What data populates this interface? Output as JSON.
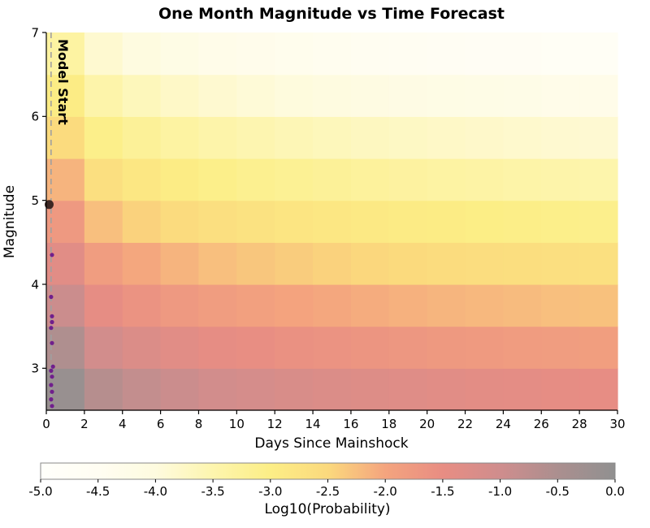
{
  "chart_data": {
    "type": "heatmap",
    "title": "One Month Magnitude vs Time Forecast",
    "xlabel": "Days Since Mainshock",
    "ylabel": "Magnitude",
    "colorbar_label": "Log10(Probability)",
    "xlim": [
      0,
      30
    ],
    "ylim": [
      2.5,
      7
    ],
    "x_ticks": [
      0,
      2,
      4,
      6,
      8,
      10,
      12,
      14,
      16,
      18,
      20,
      22,
      24,
      26,
      28,
      30
    ],
    "y_ticks": [
      3,
      4,
      5,
      6,
      7
    ],
    "day_edges": [
      0,
      2,
      4,
      6,
      8,
      10,
      12,
      14,
      16,
      18,
      20,
      22,
      24,
      26,
      28,
      30
    ],
    "mag_edges": [
      2.5,
      3.0,
      3.5,
      4.0,
      4.5,
      5.0,
      5.5,
      6.0,
      6.5,
      7.0
    ],
    "values": [
      [
        -0.15,
        -0.65,
        -0.83,
        -0.95,
        -1.05,
        -1.12,
        -1.18,
        -1.23,
        -1.28,
        -1.32,
        -1.36,
        -1.39,
        -1.42,
        -1.45,
        -1.47
      ],
      [
        -0.55,
        -1.05,
        -1.23,
        -1.35,
        -1.45,
        -1.52,
        -1.58,
        -1.63,
        -1.68,
        -1.72,
        -1.76,
        -1.79,
        -1.82,
        -1.85,
        -1.87
      ],
      [
        -0.95,
        -1.45,
        -1.63,
        -1.75,
        -1.85,
        -1.92,
        -1.98,
        -2.03,
        -2.08,
        -2.12,
        -2.16,
        -2.19,
        -2.22,
        -2.25,
        -2.27
      ],
      [
        -1.35,
        -1.85,
        -2.03,
        -2.15,
        -2.25,
        -2.32,
        -2.38,
        -2.43,
        -2.48,
        -2.52,
        -2.56,
        -2.59,
        -2.62,
        -2.65,
        -2.67
      ],
      [
        -1.75,
        -2.25,
        -2.43,
        -2.55,
        -2.65,
        -2.72,
        -2.78,
        -2.83,
        -2.88,
        -2.92,
        -2.96,
        -2.99,
        -3.02,
        -3.05,
        -3.07
      ],
      [
        -2.15,
        -2.65,
        -2.83,
        -2.95,
        -3.05,
        -3.12,
        -3.18,
        -3.23,
        -3.28,
        -3.32,
        -3.36,
        -3.39,
        -3.42,
        -3.45,
        -3.47
      ],
      [
        -2.55,
        -3.05,
        -3.23,
        -3.35,
        -3.45,
        -3.52,
        -3.58,
        -3.63,
        -3.68,
        -3.72,
        -3.76,
        -3.79,
        -3.82,
        -3.85,
        -3.87
      ],
      [
        -2.95,
        -3.45,
        -3.63,
        -3.75,
        -3.85,
        -3.92,
        -3.98,
        -4.03,
        -4.08,
        -4.12,
        -4.16,
        -4.19,
        -4.22,
        -4.25,
        -4.27
      ],
      [
        -3.35,
        -3.85,
        -4.03,
        -4.15,
        -4.25,
        -4.32,
        -4.38,
        -4.43,
        -4.48,
        -4.52,
        -4.56,
        -4.59,
        -4.62,
        -4.65,
        -4.67
      ]
    ],
    "colormap_stops": [
      [
        -5.0,
        "#fffffb"
      ],
      [
        -4.5,
        "#fffdf2"
      ],
      [
        -4.0,
        "#fefbdf"
      ],
      [
        -3.5,
        "#fdf5ae"
      ],
      [
        -3.0,
        "#fcee86"
      ],
      [
        -2.5,
        "#fbd97d"
      ],
      [
        -2.0,
        "#f4a47e"
      ],
      [
        -1.5,
        "#e88d83"
      ],
      [
        -1.0,
        "#cf8d8d"
      ],
      [
        -0.5,
        "#ab8f8f"
      ],
      [
        0.0,
        "#909090"
      ]
    ],
    "colorbar_range": [
      -5.0,
      0.0
    ],
    "colorbar_ticks": [
      -5.0,
      -4.5,
      -4.0,
      -3.5,
      -3.0,
      -2.5,
      -2.0,
      -1.5,
      -1.0,
      -0.5,
      0.0
    ],
    "model_start": {
      "label": "Model Start",
      "day": 0.25,
      "line_color": "#a0a0a0"
    },
    "mainshock": {
      "day": 0.15,
      "mag": 4.95,
      "color": "#3e2723"
    },
    "observed_events": [
      {
        "day": 0.3,
        "mag": 2.55
      },
      {
        "day": 0.25,
        "mag": 2.63
      },
      {
        "day": 0.3,
        "mag": 2.72
      },
      {
        "day": 0.25,
        "mag": 2.8
      },
      {
        "day": 0.3,
        "mag": 2.9
      },
      {
        "day": 0.25,
        "mag": 2.97
      },
      {
        "day": 0.35,
        "mag": 3.02
      },
      {
        "day": 0.3,
        "mag": 3.3
      },
      {
        "day": 0.25,
        "mag": 3.48
      },
      {
        "day": 0.3,
        "mag": 3.55
      },
      {
        "day": 0.3,
        "mag": 3.62
      },
      {
        "day": 0.25,
        "mag": 3.85
      },
      {
        "day": 0.3,
        "mag": 4.35
      }
    ],
    "event_color": "#701f8c"
  }
}
